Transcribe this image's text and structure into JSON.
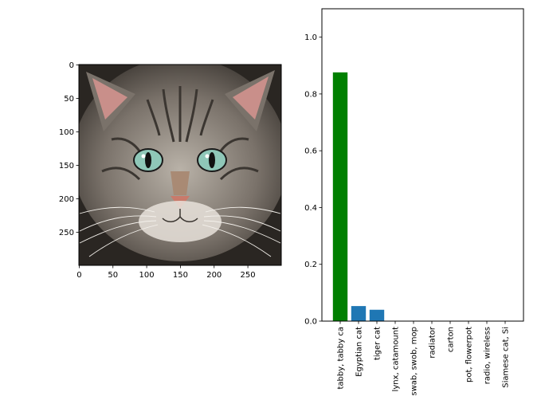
{
  "chart_data": [
    {
      "type": "image",
      "title": "",
      "image_subject": "tabby cat face, front view",
      "x_ticks": [
        0,
        50,
        100,
        150,
        200,
        250
      ],
      "y_ticks": [
        0,
        50,
        100,
        150,
        200,
        250
      ],
      "xlim": [
        0,
        299
      ],
      "ylim": [
        0,
        299
      ],
      "colors": {
        "fur_dark": "#3b3631",
        "fur_mid": "#7a726a",
        "fur_light": "#b9b2a8",
        "ear_inner": "#c98f8a",
        "eye": "#8fc7b8",
        "nose": "#c97a6b",
        "muzzle": "#e8e2da"
      }
    },
    {
      "type": "bar",
      "title": "",
      "xlabel": "",
      "ylabel": "",
      "categories": [
        "tabby, tabby ca",
        "Egyptian cat",
        "tiger cat",
        "lynx, catamount",
        "swab, swob, mop",
        "radiator",
        "carton",
        "pot, flowerpot",
        "radio, wireless",
        "Siamese cat, Si"
      ],
      "values": [
        0.876,
        0.053,
        0.04,
        0.0,
        0.0,
        0.0,
        0.0,
        0.0,
        0.0,
        0.0
      ],
      "bar_colors": [
        "#008000",
        "#1f77b4",
        "#1f77b4",
        "#1f77b4",
        "#1f77b4",
        "#1f77b4",
        "#1f77b4",
        "#1f77b4",
        "#1f77b4",
        "#1f77b4"
      ],
      "ylim": [
        0,
        1.1
      ],
      "y_ticks": [
        "0.0",
        "0.2",
        "0.4",
        "0.6",
        "0.8",
        "1.0"
      ],
      "grid": false
    }
  ]
}
